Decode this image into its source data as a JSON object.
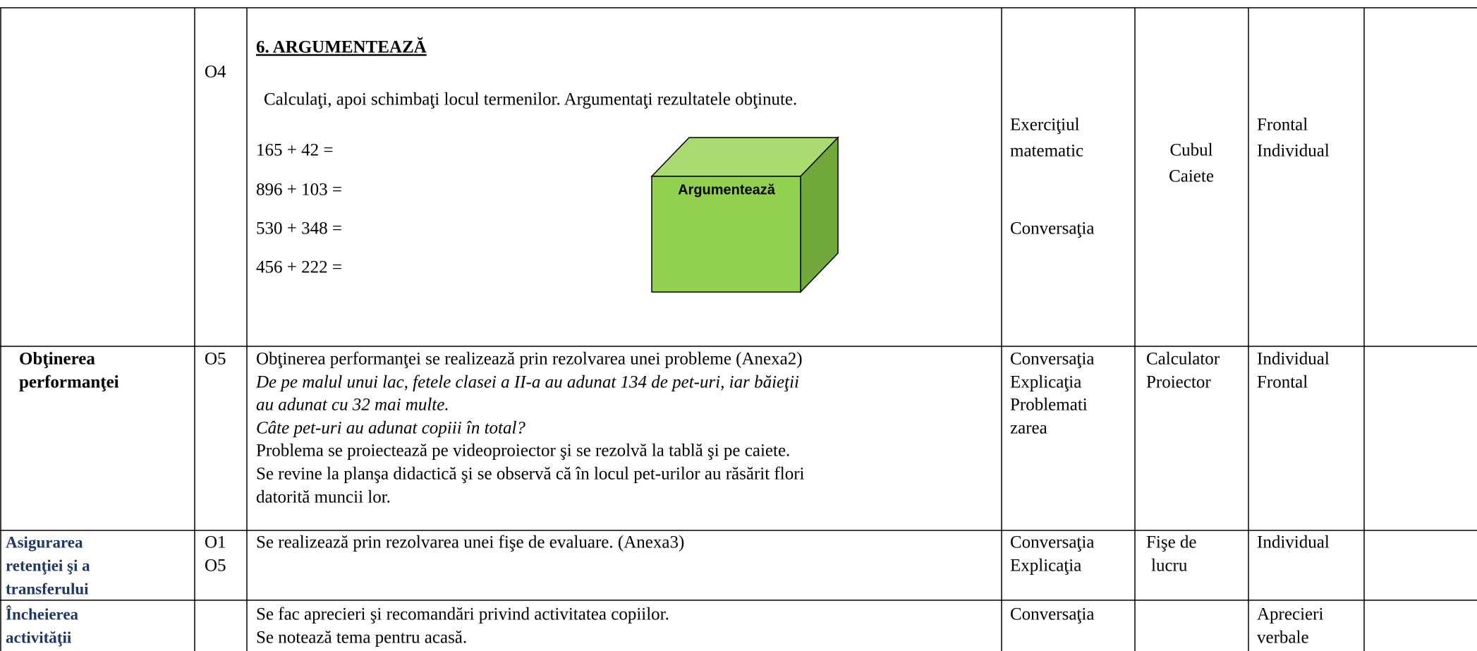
{
  "table": {
    "rows": [
      {
        "stage": [],
        "objectives": [
          "O4"
        ],
        "content": {
          "heading": "6. ARGUMENTEAZĂ",
          "instruction": "Calculaţi, apoi schimbaţi locul termenilor. Argumentaţi rezultatele obţinute.",
          "exercises": [
            "165 + 42 =",
            "896 + 103 =",
            "530 + 348 =",
            "456 + 222 ="
          ],
          "cube_label": "Argumentează"
        },
        "methods": [
          "Exerciţiul",
          "matematic",
          "Conversaţia"
        ],
        "materials": [
          "Cubul",
          "Caiete"
        ],
        "organization": [
          "Frontal",
          "Individual"
        ]
      },
      {
        "stage": [
          "Obţinerea",
          "performanţei"
        ],
        "objectives": [
          "O5"
        ],
        "content": {
          "lines": [
            "Obţinerea performanţei se realizează prin rezolvarea unei probleme (Anexa2)",
            "De pe malul unui lac, fetele clasei a II-a au adunat 134 de pet-uri, iar băieţii",
            "au adunat cu 32 mai multe.",
            "Câte pet-uri au adunat copiii în total?",
            "Problema se proiectează pe videoproiector şi se rezolvă la tablă şi pe caiete.",
            "Se revine la planşa didactică şi se observă că în locul pet-urilor au răsărit  flori",
            "datorită muncii lor."
          ]
        },
        "methods": [
          "Conversaţia",
          "Explicaţia",
          "Problemati",
          "zarea"
        ],
        "materials": [
          "Calculator",
          "Proiector"
        ],
        "organization": [
          "Individual",
          "Frontal"
        ]
      },
      {
        "stage": [
          "Asigurarea",
          "retenţiei şi a",
          "transferului"
        ],
        "objectives": [
          "O1",
          "O5"
        ],
        "content": {
          "lines": [
            "Se realizează prin rezolvarea unei fişe de evaluare. (Anexa3)"
          ]
        },
        "methods": [
          "Conversaţia",
          "Explicaţia"
        ],
        "materials": [
          "Fişe de",
          "lucru"
        ],
        "organization": [
          "Individual"
        ]
      },
      {
        "stage": [
          "Încheierea",
          "activităţii"
        ],
        "objectives": [],
        "content": {
          "lines": [
            "Se fac aprecieri şi recomandări privind activitatea copiilor.",
            "Se notează tema pentru acasă."
          ]
        },
        "methods": [
          "Conversaţia"
        ],
        "materials": [],
        "organization": [
          "Aprecieri",
          "verbale"
        ]
      }
    ]
  }
}
